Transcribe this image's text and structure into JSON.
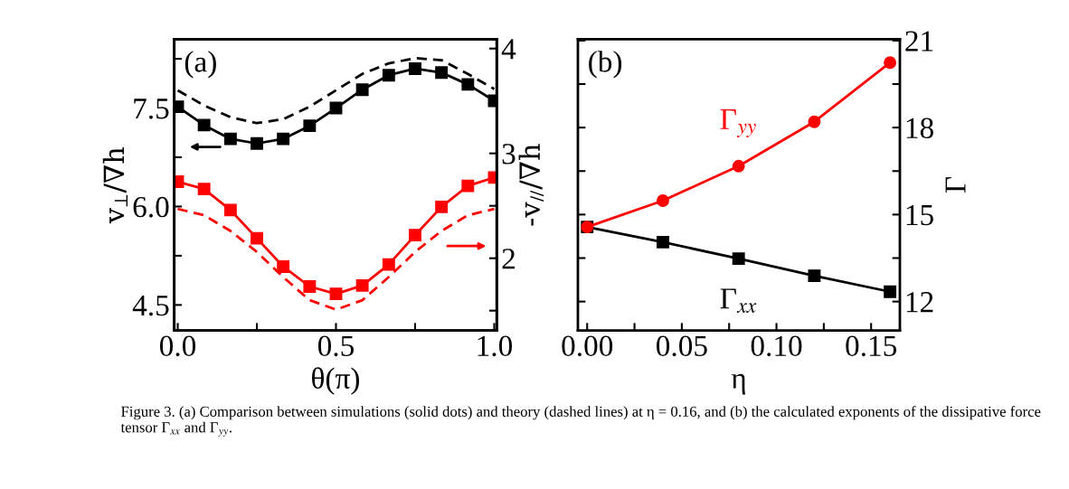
{
  "chart_data": [
    {
      "type": "line",
      "xlabel": "θ(π)",
      "ylabel": "v$_{⊥}$/∇h",
      "y2label": "-v$_{//}$/∇h",
      "x": [
        0,
        0.0833,
        0.1667,
        0.25,
        0.3333,
        0.4167,
        0.5,
        0.5833,
        0.6667,
        0.75,
        0.8333,
        0.9167,
        1.0
      ],
      "series": [
        {
          "color": "#000000",
          "marker": "square",
          "line_style": "solid",
          "values": [
            7.52,
            7.24,
            7.03,
            6.96,
            7.03,
            7.23,
            7.5,
            7.78,
            8.0,
            8.1,
            8.04,
            7.86,
            7.61
          ]
        },
        {
          "color": "#000000",
          "marker": "none",
          "line_style": "dashed",
          "values": [
            7.77,
            7.54,
            7.36,
            7.27,
            7.33,
            7.52,
            7.77,
            8.02,
            8.18,
            8.26,
            8.23,
            8.02,
            7.79
          ]
        },
        {
          "color": "#ff0000",
          "marker": "square",
          "line_style": "solid",
          "axis": "y2",
          "values": [
            2.73,
            2.66,
            2.46,
            2.19,
            1.92,
            1.73,
            1.66,
            1.74,
            1.94,
            2.22,
            2.49,
            2.69,
            2.77
          ]
        },
        {
          "color": "#ff0000",
          "marker": "none",
          "line_style": "dashed",
          "axis": "y2",
          "values": [
            2.47,
            2.41,
            2.26,
            2.06,
            1.82,
            1.6,
            1.51,
            1.6,
            1.82,
            2.06,
            2.26,
            2.41,
            2.47
          ]
        }
      ],
      "xlim": [
        -0.011,
        1.008
      ],
      "xticks": [
        {
          "value": 0,
          "label": "0.0"
        },
        {
          "value": 0.25,
          "label": null
        },
        {
          "value": 0.5,
          "label": "0.5"
        },
        {
          "value": 0.75,
          "label": null
        },
        {
          "value": 1.0,
          "label": "1.0"
        }
      ],
      "ylim": [
        4.11,
        8.55
      ],
      "yticks": [
        {
          "value": 4.5,
          "label": "4.5"
        },
        {
          "value": 5.25,
          "label": null
        },
        {
          "value": 6.0,
          "label": "6.0"
        },
        {
          "value": 6.75,
          "label": null
        },
        {
          "value": 7.5,
          "label": "7.5"
        },
        {
          "value": 8.25,
          "label": null
        }
      ],
      "y2lim": [
        1.31,
        4.09
      ],
      "y2ticks": [
        {
          "value": 1.5,
          "label": null
        },
        2,
        {
          "value": 2.5,
          "label": null
        },
        3,
        {
          "value": 3.5,
          "label": null
        },
        4
      ],
      "annotations": [
        "(a)"
      ]
    },
    {
      "type": "line",
      "xlabel": "η",
      "ylabel": "Γ",
      "x": [
        0,
        0.04,
        0.08,
        0.12,
        0.16
      ],
      "series": [
        {
          "name": "Γ$_{yy}$",
          "color": "#ff0000",
          "marker": "circle",
          "line_style": "solid",
          "values": [
            14.57,
            15.48,
            16.67,
            18.2,
            20.24
          ]
        },
        {
          "name": "Γ$_{xx}$",
          "color": "#000000",
          "marker": "square",
          "line_style": "solid",
          "values": [
            14.57,
            14.05,
            13.48,
            12.89,
            12.34
          ]
        }
      ],
      "xlim": [
        -0.0049,
        0.1652
      ],
      "xticks": [
        {
          "value": 0,
          "label": "0.00"
        },
        {
          "value": 0.025,
          "label": null
        },
        {
          "value": 0.05,
          "label": "0.05"
        },
        {
          "value": 0.075,
          "label": null
        },
        {
          "value": 0.1,
          "label": "0.10"
        },
        {
          "value": 0.125,
          "label": null
        },
        {
          "value": 0.15,
          "label": "0.15"
        }
      ],
      "ylim": [
        11,
        21.05
      ],
      "yticks": [
        12,
        {
          "value": 13.5,
          "label": null
        },
        15,
        {
          "value": 16.5,
          "label": null
        },
        18,
        {
          "value": 19.5,
          "label": null
        },
        21
      ],
      "annotations": [
        "(b)",
        "Figure 3. (a) Comparison between simulations (solid dots) and theory (dashed lines) at η = 0.16, and (b) the calculated exponents of the dissipative force tensor Γ$_{xx}$ and Γ$_{yy}$."
      ]
    }
  ]
}
